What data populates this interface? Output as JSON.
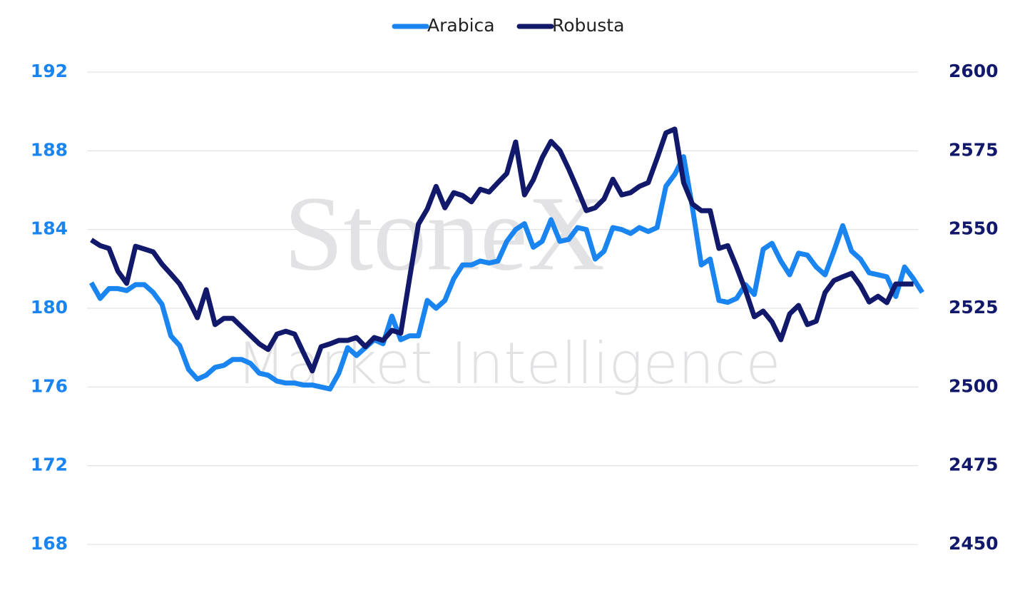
{
  "chart_data": {
    "type": "line",
    "categories": [
      null,
      null,
      null,
      null,
      null,
      null,
      null,
      null,
      null,
      null,
      null,
      null,
      null,
      null,
      null,
      null,
      null,
      null,
      null,
      null,
      null,
      null,
      null,
      null,
      null,
      null,
      null,
      null,
      null,
      null,
      null,
      null,
      null,
      null,
      null,
      null,
      null,
      null,
      null,
      null,
      null,
      null,
      null,
      null,
      null,
      null,
      null,
      null,
      null,
      null,
      null,
      null,
      null,
      null,
      null,
      null,
      null,
      null,
      null,
      null,
      null,
      null,
      null,
      null,
      null,
      null,
      null,
      null,
      null,
      null,
      null,
      null,
      null,
      null,
      null,
      null,
      null,
      null,
      null,
      null,
      null,
      null,
      null,
      null,
      null,
      null,
      null,
      null,
      null,
      null,
      null,
      null,
      null,
      null,
      null
    ],
    "series": [
      {
        "name": "Arabica",
        "color": "#1a85f0",
        "axis": "y",
        "values": [
          181.3,
          180.5,
          181.0,
          181.0,
          180.9,
          181.2,
          181.2,
          180.8,
          180.2,
          178.6,
          178.1,
          176.9,
          176.4,
          176.6,
          177.0,
          177.1,
          177.4,
          177.4,
          177.2,
          176.7,
          176.6,
          176.3,
          176.2,
          176.2,
          176.1,
          176.1,
          176.0,
          175.9,
          176.7,
          178.0,
          177.6,
          178.0,
          178.4,
          178.2,
          179.6,
          178.4,
          178.6,
          178.6,
          180.4,
          180.0,
          180.4,
          181.5,
          182.2,
          182.2,
          182.4,
          182.3,
          182.4,
          183.4,
          184.0,
          184.3,
          183.1,
          183.4,
          184.5,
          183.4,
          183.5,
          184.1,
          184.0,
          182.5,
          182.9,
          184.1,
          184.0,
          183.8,
          184.1,
          183.9,
          184.1,
          186.2,
          186.8,
          187.7,
          185.1,
          182.2,
          182.5,
          180.4,
          180.3,
          180.5,
          181.2,
          180.7,
          183.0,
          183.3,
          182.4,
          181.7,
          182.8,
          182.7,
          182.1,
          181.7,
          182.9,
          184.2,
          182.9,
          182.5,
          181.8,
          181.7,
          181.6,
          180.6,
          182.1,
          181.5,
          180.8
        ]
      },
      {
        "name": "Robusta",
        "color": "#12196b",
        "axis": "y2",
        "values": [
          2546.7,
          2544.9,
          2544.0,
          2536.8,
          2532.9,
          2544.7,
          2543.8,
          2542.9,
          2539.0,
          2535.9,
          2532.7,
          2527.7,
          2522.0,
          2530.9,
          2519.8,
          2521.8,
          2521.8,
          2519.1,
          2516.4,
          2513.7,
          2511.9,
          2516.8,
          2517.7,
          2516.8,
          2510.9,
          2505.1,
          2512.8,
          2513.7,
          2514.8,
          2514.8,
          2515.7,
          2512.8,
          2515.7,
          2514.8,
          2518.0,
          2517.1,
          2534.5,
          2551.7,
          2556.5,
          2563.7,
          2556.9,
          2561.7,
          2560.8,
          2558.8,
          2562.8,
          2561.9,
          2564.9,
          2567.8,
          2577.8,
          2561.0,
          2565.8,
          2572.8,
          2578.0,
          2575.1,
          2569.2,
          2562.8,
          2556.0,
          2556.9,
          2559.7,
          2566.0,
          2561.0,
          2561.7,
          2563.7,
          2564.9,
          2572.6,
          2580.7,
          2581.9,
          2564.9,
          2558.1,
          2556.0,
          2556.0,
          2544.0,
          2544.9,
          2538.1,
          2530.7,
          2522.3,
          2524.1,
          2520.7,
          2515.0,
          2523.2,
          2525.9,
          2519.8,
          2520.9,
          2530.0,
          2533.8,
          2535.0,
          2536.1,
          2532.2,
          2527.0,
          2528.8,
          2526.8,
          2532.7,
          2532.7,
          2532.7,
          null
        ]
      }
    ],
    "ylim": [
      168,
      192
    ],
    "yticks": [
      168,
      172,
      176,
      180,
      184,
      188,
      192
    ],
    "y2lim": [
      2450,
      2600
    ],
    "y2ticks": [
      2450,
      2475,
      2500,
      2525,
      2550,
      2575,
      2600
    ],
    "grid": true,
    "legend": "top",
    "watermark": [
      "StoneX",
      "Market Intelligence"
    ]
  }
}
